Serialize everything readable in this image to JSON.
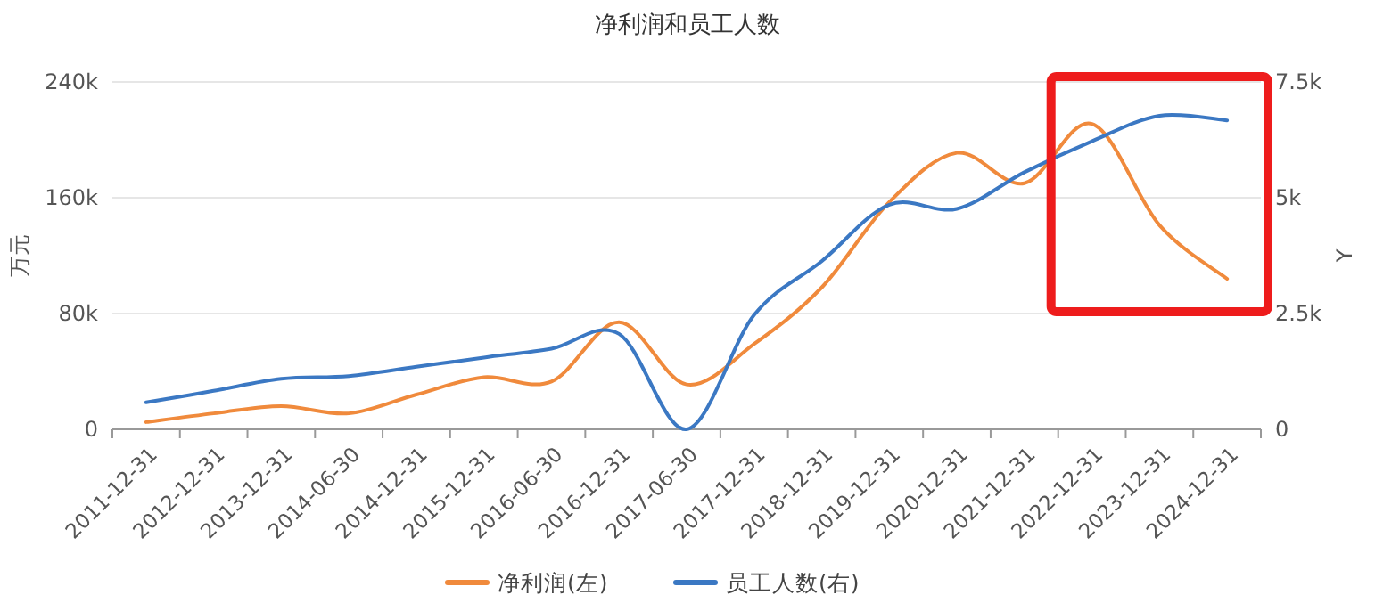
{
  "chart_data": {
    "type": "line",
    "title": "净利润和员工人数",
    "ylabel": "万元",
    "y2label": "Y",
    "categories": [
      "2011-12-31",
      "2012-12-31",
      "2013-12-31",
      "2014-06-30",
      "2014-12-31",
      "2015-12-31",
      "2016-06-30",
      "2016-12-31",
      "2017-06-30",
      "2017-12-31",
      "2018-12-31",
      "2019-12-31",
      "2020-12-31",
      "2021-12-31",
      "2022-12-31",
      "2023-12-31",
      "2024-12-31"
    ],
    "series": [
      {
        "name": "净利润(左)",
        "color": "#f08a3c",
        "values": [
          5000,
          11000,
          16000,
          11000,
          24000,
          36000,
          33000,
          74000,
          31000,
          59000,
          98000,
          157000,
          191000,
          170000,
          211000,
          141000,
          104000
        ]
      },
      {
        "name": "员工人数(右)",
        "color": "#3b78c3",
        "axis": "y2",
        "values": [
          580,
          830,
          1090,
          1150,
          1350,
          1550,
          1740,
          2060,
          0,
          2470,
          3630,
          4850,
          4760,
          5550,
          6220,
          6770,
          6670
        ]
      }
    ],
    "ylim": [
      0,
      240000
    ],
    "yticks": [
      0,
      {
        "value": 80000,
        "label": "80k"
      },
      {
        "value": 160000,
        "label": "160k"
      },
      {
        "value": 240000,
        "label": "240k"
      }
    ],
    "y2lim": [
      0,
      7500
    ],
    "y2ticks": [
      0,
      {
        "value": 2500,
        "label": "2.5k"
      },
      {
        "value": 5000,
        "label": "5k"
      },
      {
        "value": 7500,
        "label": "7.5k"
      }
    ],
    "grid": "y",
    "legend": "bottom",
    "marker": "none",
    "line_style": "solid"
  }
}
